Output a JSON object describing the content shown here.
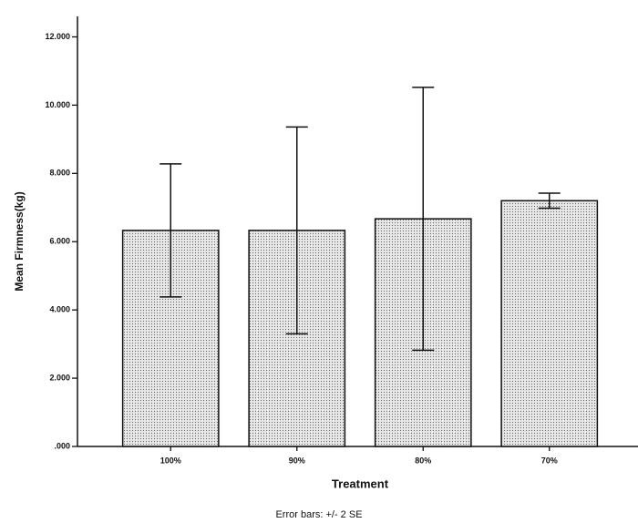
{
  "chart_data": {
    "type": "bar",
    "categories": [
      "100%",
      "90%",
      "80%",
      "70%"
    ],
    "values": [
      6.33,
      6.33,
      6.67,
      7.2
    ],
    "errors": [
      1.95,
      3.03,
      3.85,
      0.22
    ],
    "color": "#e8e8e8",
    "x_label": "Treatment",
    "y_label": "Mean Firmness(kg)",
    "note": "Error bars: +/- 2 SE",
    "ylim": [
      0,
      12.6
    ],
    "yticks": [
      {
        "value": 0,
        "label": ".000"
      },
      {
        "value": 2,
        "label": "2.000"
      },
      {
        "value": 4,
        "label": "4.000"
      },
      {
        "value": 6,
        "label": "6.000"
      },
      {
        "value": 8,
        "label": "8.000"
      },
      {
        "value": 10,
        "label": "10.000"
      },
      {
        "value": 12,
        "label": "12.000"
      }
    ],
    "grid": false
  }
}
